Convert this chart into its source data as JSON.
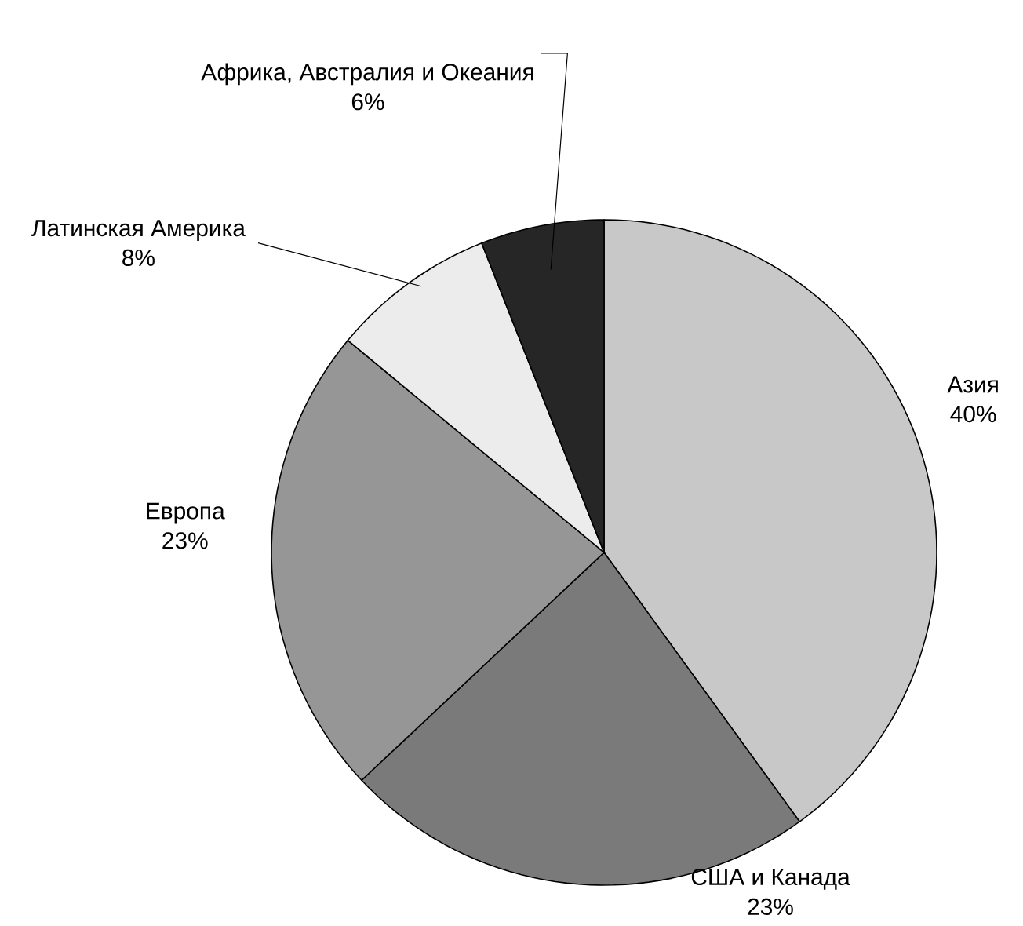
{
  "chart_data": {
    "type": "pie",
    "categories": [
      "Азия",
      "США и Канада",
      "Европа",
      "Латинская Америка",
      "Африка, Австралия и Океания"
    ],
    "values": [
      40,
      23,
      23,
      8,
      6
    ],
    "value_labels": [
      "40%",
      "23%",
      "23%",
      "8%",
      "6%"
    ],
    "colors": [
      "#c8c8c8",
      "#7a7a7a",
      "#969696",
      "#ececec",
      "#262626"
    ]
  }
}
